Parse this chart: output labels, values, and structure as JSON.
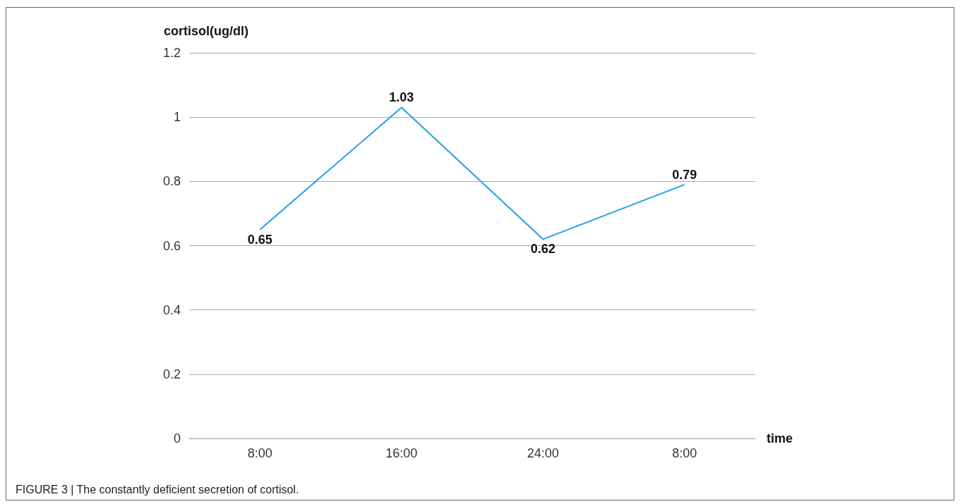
{
  "chart_data": {
    "type": "line",
    "ylabel": "cortisol(ug/dl)",
    "xlabel": "time",
    "categories": [
      "8:00",
      "16:00",
      "24:00",
      "8:00"
    ],
    "series": [
      {
        "color": "#1ea0e6",
        "values": [
          0.65,
          1.03,
          0.62,
          0.79
        ]
      }
    ],
    "ylim": [
      0,
      1.2
    ],
    "yticks": [
      0,
      0.2,
      0.4,
      0.6,
      0.8,
      1,
      1.2
    ],
    "grid": "y",
    "data_labels": true,
    "marker": "none",
    "line_style": "solid",
    "annotations": [
      "FIGURE 3 | The constantly deficient secretion of cortisol."
    ]
  }
}
